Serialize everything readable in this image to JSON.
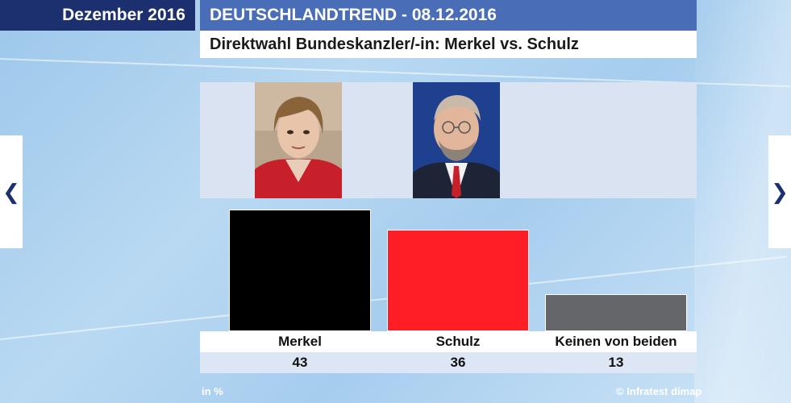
{
  "header": {
    "month": "Dezember 2016",
    "title": "DEUTSCHLANDTREND - 08.12.2016",
    "subtitle": "Direktwahl Bundeskanzler/-in: Merkel vs. Schulz"
  },
  "footer": {
    "unit": "in %",
    "source": "© Infratest dimap"
  },
  "colors": {
    "merkel": "#000000",
    "schulz": "#ff1e26",
    "keinen": "#65666a"
  },
  "chart_data": {
    "type": "bar",
    "title": "Direktwahl Bundeskanzler/-in: Merkel vs. Schulz",
    "categories": [
      "Merkel",
      "Schulz",
      "Keinen von beiden"
    ],
    "values": [
      43,
      36,
      13
    ],
    "value_labels": [
      "43",
      "36",
      "13"
    ],
    "ylabel": "in %",
    "ylim": [
      0,
      45
    ],
    "grid": false,
    "legend": "none"
  },
  "nav": {
    "prev_icon": "chevron-left-icon",
    "next_icon": "chevron-right-icon"
  }
}
